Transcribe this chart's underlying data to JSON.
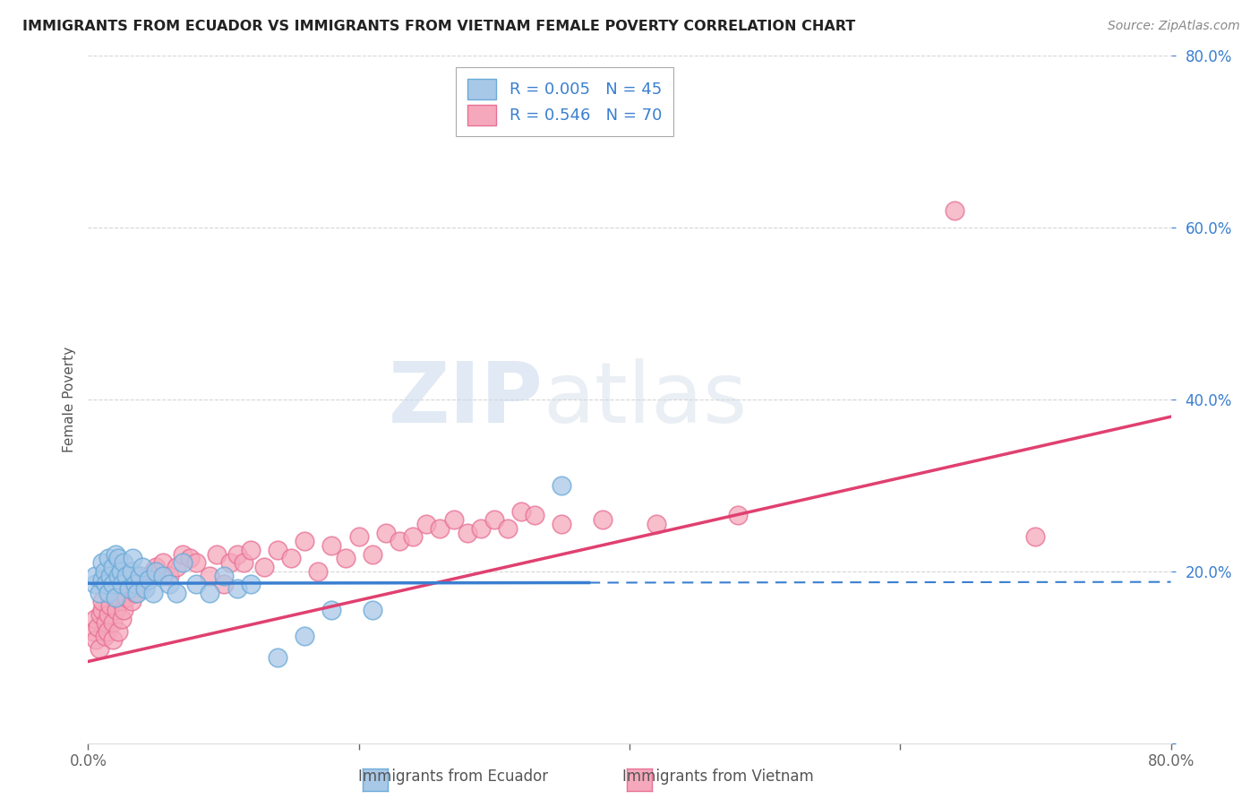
{
  "title": "IMMIGRANTS FROM ECUADOR VS IMMIGRANTS FROM VIETNAM FEMALE POVERTY CORRELATION CHART",
  "source": "Source: ZipAtlas.com",
  "ylabel": "Female Poverty",
  "xlim": [
    0.0,
    0.8
  ],
  "ylim": [
    0.0,
    0.8
  ],
  "xticks": [
    0.0,
    0.2,
    0.4,
    0.6,
    0.8
  ],
  "yticks": [
    0.0,
    0.2,
    0.4,
    0.6,
    0.8
  ],
  "xticklabels": [
    "0.0%",
    "",
    "",
    "",
    "80.0%"
  ],
  "yticklabels": [
    "",
    "20.0%",
    "40.0%",
    "60.0%",
    "80.0%"
  ],
  "ecuador_color": "#A8C8E8",
  "vietnam_color": "#F5A8BC",
  "ecuador_edge": "#6AAAD8",
  "vietnam_edge": "#E87095",
  "trend_ecuador_color": "#3A7FD0",
  "trend_vietnam_color": "#E04070",
  "R_ecuador": 0.005,
  "N_ecuador": 45,
  "R_vietnam": 0.546,
  "N_vietnam": 70,
  "watermark_zip": "ZIP",
  "watermark_atlas": "atlas",
  "background_color": "#ffffff",
  "grid_color": "#cccccc",
  "ecuador_x": [
    0.005,
    0.005,
    0.008,
    0.01,
    0.01,
    0.012,
    0.013,
    0.015,
    0.015,
    0.016,
    0.018,
    0.018,
    0.02,
    0.02,
    0.022,
    0.022,
    0.024,
    0.025,
    0.026,
    0.028,
    0.03,
    0.032,
    0.033,
    0.035,
    0.036,
    0.038,
    0.04,
    0.042,
    0.045,
    0.048,
    0.05,
    0.055,
    0.06,
    0.065,
    0.07,
    0.08,
    0.09,
    0.1,
    0.11,
    0.12,
    0.14,
    0.16,
    0.18,
    0.21,
    0.35
  ],
  "ecuador_y": [
    0.185,
    0.195,
    0.175,
    0.19,
    0.21,
    0.2,
    0.185,
    0.215,
    0.175,
    0.195,
    0.205,
    0.185,
    0.22,
    0.17,
    0.195,
    0.215,
    0.2,
    0.185,
    0.21,
    0.195,
    0.18,
    0.2,
    0.215,
    0.185,
    0.175,
    0.195,
    0.205,
    0.18,
    0.19,
    0.175,
    0.2,
    0.195,
    0.185,
    0.175,
    0.21,
    0.185,
    0.175,
    0.195,
    0.18,
    0.185,
    0.1,
    0.125,
    0.155,
    0.155,
    0.3
  ],
  "vietnam_x": [
    0.004,
    0.005,
    0.006,
    0.007,
    0.008,
    0.009,
    0.01,
    0.01,
    0.012,
    0.013,
    0.014,
    0.015,
    0.016,
    0.018,
    0.018,
    0.02,
    0.021,
    0.022,
    0.024,
    0.025,
    0.026,
    0.028,
    0.03,
    0.032,
    0.035,
    0.038,
    0.04,
    0.045,
    0.048,
    0.05,
    0.055,
    0.06,
    0.065,
    0.07,
    0.075,
    0.08,
    0.09,
    0.095,
    0.1,
    0.105,
    0.11,
    0.115,
    0.12,
    0.13,
    0.14,
    0.15,
    0.16,
    0.17,
    0.18,
    0.19,
    0.2,
    0.21,
    0.22,
    0.23,
    0.24,
    0.25,
    0.26,
    0.27,
    0.28,
    0.29,
    0.3,
    0.31,
    0.32,
    0.33,
    0.35,
    0.38,
    0.42,
    0.48,
    0.7,
    0.64
  ],
  "vietnam_y": [
    0.13,
    0.145,
    0.12,
    0.135,
    0.11,
    0.15,
    0.155,
    0.165,
    0.125,
    0.14,
    0.13,
    0.15,
    0.16,
    0.12,
    0.14,
    0.17,
    0.155,
    0.13,
    0.165,
    0.145,
    0.155,
    0.17,
    0.18,
    0.165,
    0.175,
    0.195,
    0.185,
    0.195,
    0.2,
    0.205,
    0.21,
    0.195,
    0.205,
    0.22,
    0.215,
    0.21,
    0.195,
    0.22,
    0.185,
    0.21,
    0.22,
    0.21,
    0.225,
    0.205,
    0.225,
    0.215,
    0.235,
    0.2,
    0.23,
    0.215,
    0.24,
    0.22,
    0.245,
    0.235,
    0.24,
    0.255,
    0.25,
    0.26,
    0.245,
    0.25,
    0.26,
    0.25,
    0.27,
    0.265,
    0.255,
    0.26,
    0.255,
    0.265,
    0.24,
    0.62
  ],
  "legend_ecuador_label": "R = 0.005   N = 45",
  "legend_vietnam_label": "R = 0.546   N = 70",
  "bottom_legend_ecuador": "Immigrants from Ecuador",
  "bottom_legend_vietnam": "Immigrants from Vietnam"
}
